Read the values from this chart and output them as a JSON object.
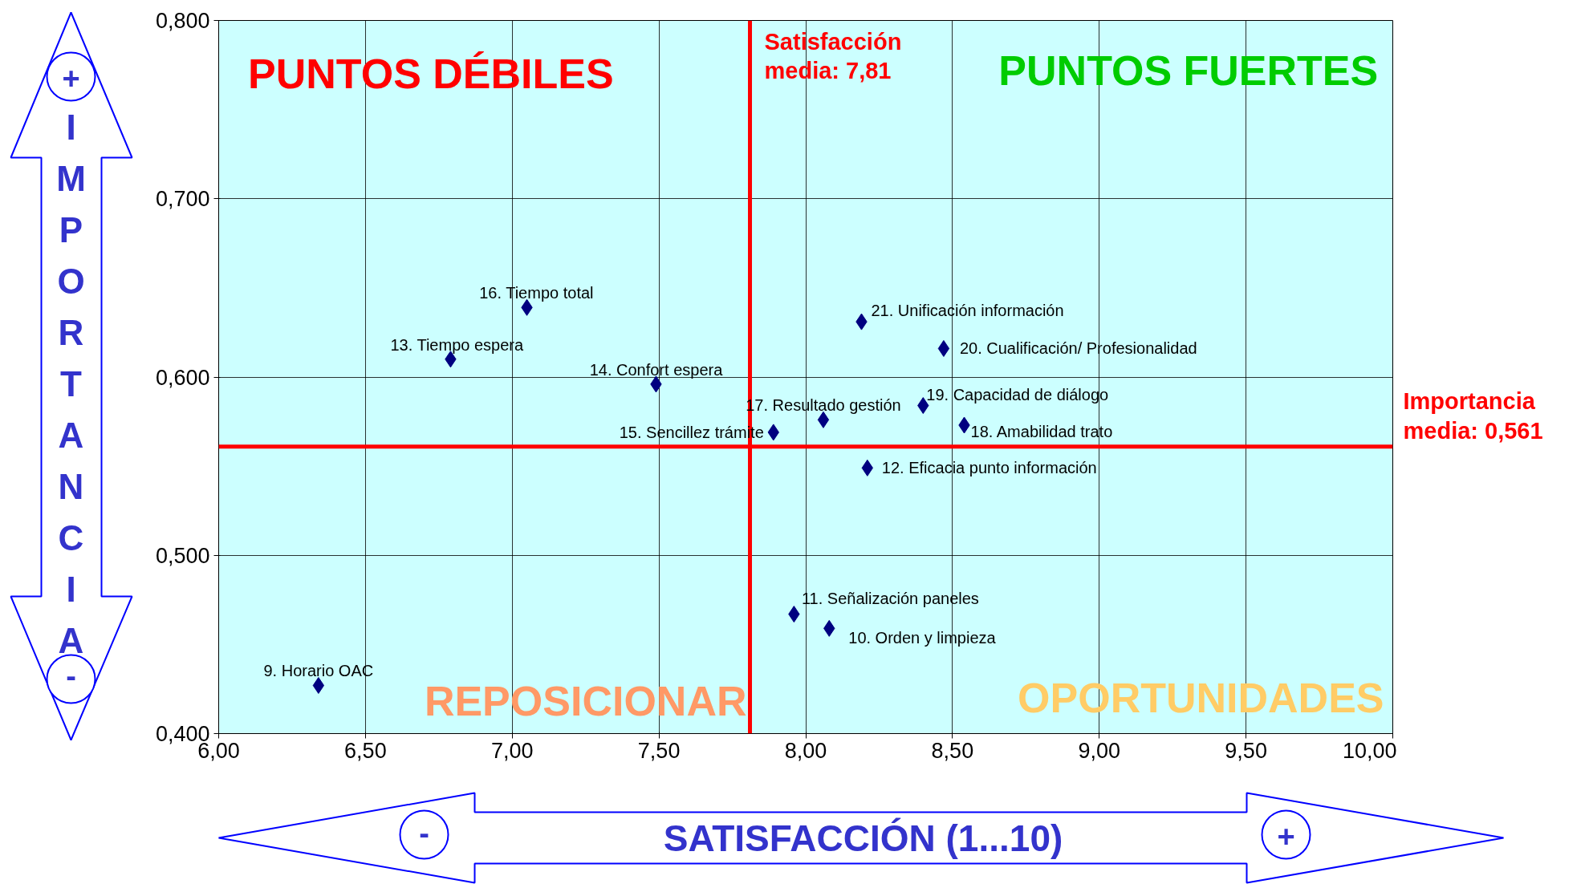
{
  "chart_data": {
    "type": "scatter",
    "xlabel": "SATISFACCIÓN (1...10)",
    "ylabel": "IMPORTANCIA",
    "x": [
      6.34,
      6.79,
      7.05,
      7.49,
      7.89,
      8.06,
      8.19,
      8.47,
      8.4,
      8.54,
      8.21,
      7.96,
      8.08
    ],
    "series": [
      {
        "color": "#000080",
        "values": [
          0.427,
          0.61,
          0.639,
          0.596,
          0.569,
          0.576,
          0.631,
          0.616,
          0.584,
          0.573,
          0.549,
          0.467,
          0.459
        ]
      }
    ],
    "marker": "diamond",
    "grid": true,
    "xlim": [
      6.0,
      10.0
    ],
    "ylim": [
      0.4,
      0.8
    ],
    "xticks": [
      {
        "value": 6.0,
        "label": "6,00"
      },
      {
        "value": 6.5,
        "label": "6,50"
      },
      {
        "value": 7.0,
        "label": "7,00"
      },
      {
        "value": 7.5,
        "label": "7,50"
      },
      {
        "value": 8.0,
        "label": "8,00"
      },
      {
        "value": 8.5,
        "label": "8,50"
      },
      {
        "value": 9.0,
        "label": "9,00"
      },
      {
        "value": 9.5,
        "label": "9,50"
      },
      {
        "value": 10.0,
        "label": "10,00"
      }
    ],
    "yticks": [
      {
        "value": 0.4,
        "label": "0,400"
      },
      {
        "value": 0.5,
        "label": "0,500"
      },
      {
        "value": 0.6,
        "label": "0,600"
      },
      {
        "value": 0.7,
        "label": "0,700"
      },
      {
        "value": 0.8,
        "label": "0,800"
      }
    ],
    "ref_lines": [
      {
        "axis": "x",
        "value": 7.81,
        "label": "Satisfacción\nmedia: 7,81",
        "color": "#ff0000"
      },
      {
        "axis": "y",
        "value": 0.561,
        "label": "Importancia\nmedia: 0,561",
        "color": "#ff0000"
      }
    ],
    "annotations": [
      "PUNTOS DÉBILES",
      "PUNTOS FUERTES",
      "REPOSICIONAR",
      "OPORTUNIDADES",
      "+",
      "-",
      "-",
      "+",
      {
        "text": "9. Horario OAC",
        "x": 6.34,
        "y": 0.427
      },
      {
        "text": "13. Tiempo espera",
        "x": 6.79,
        "y": 0.61
      },
      {
        "text": "16. Tiempo total",
        "x": 7.05,
        "y": 0.639
      },
      {
        "text": "14. Confort espera",
        "x": 7.49,
        "y": 0.596
      },
      {
        "text": "15. Sencillez trámite",
        "x": 7.89,
        "y": 0.569
      },
      {
        "text": "17. Resultado gestión",
        "x": 8.06,
        "y": 0.576
      },
      {
        "text": "21. Unificación información",
        "x": 8.19,
        "y": 0.631
      },
      {
        "text": "20. Cualificación/ Profesionalidad",
        "x": 8.47,
        "y": 0.616
      },
      {
        "text": "19. Capacidad de diálogo",
        "x": 8.4,
        "y": 0.584
      },
      {
        "text": "18. Amabilidad trato",
        "x": 8.54,
        "y": 0.573
      },
      {
        "text": "12. Eficacia punto información",
        "x": 8.21,
        "y": 0.549
      },
      {
        "text": "11. Señalización paneles",
        "x": 7.96,
        "y": 0.467
      },
      {
        "text": "10. Orden y limpieza",
        "x": 8.08,
        "y": 0.459
      }
    ]
  }
}
